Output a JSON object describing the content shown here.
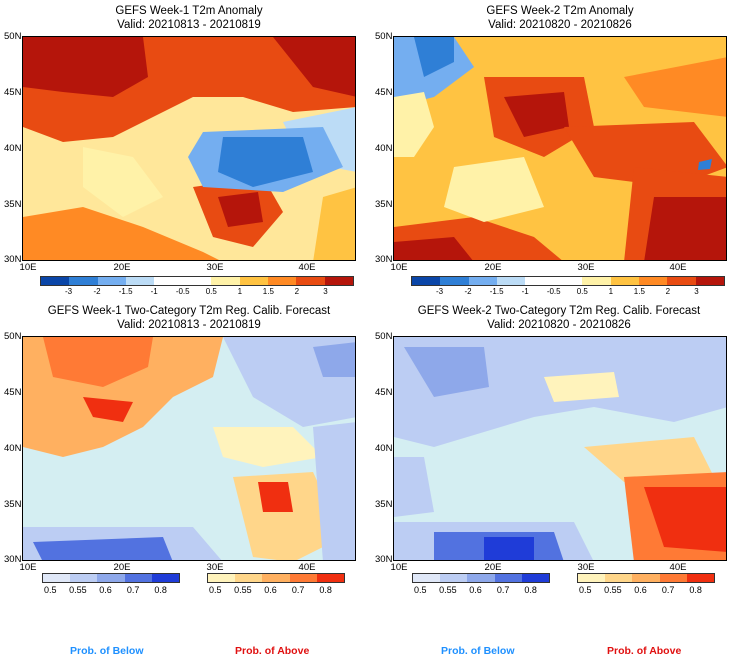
{
  "panels": [
    {
      "title": "GEFS Week-1 T2m Anomaly",
      "valid": "Valid: 20210813 - 20210819",
      "kind": "anomaly"
    },
    {
      "title": "GEFS Week-2 T2m Anomaly",
      "valid": "Valid: 20210820 - 20210826",
      "kind": "anomaly"
    },
    {
      "title": "GEFS Week-1 Two-Category T2m Reg. Calib. Forecast",
      "valid": "Valid: 20210813 - 20210819",
      "kind": "prob"
    },
    {
      "title": "GEFS Week-2 Two-Category T2m Reg. Calib. Forecast",
      "valid": "Valid: 20210820 - 20210826",
      "kind": "prob"
    }
  ],
  "axes": {
    "lat_labels": [
      "50N",
      "45N",
      "40N",
      "35N",
      "30N"
    ],
    "lon_labels": [
      "10E",
      "20E",
      "30E",
      "40E"
    ]
  },
  "anomaly_colorbar": {
    "colors": [
      "#0a46a8",
      "#2f7fd6",
      "#74aef0",
      "#bcdcf6",
      "#ffffff",
      "#ffffff",
      "#fff2a8",
      "#ffc342",
      "#ff8a24",
      "#e84b12",
      "#b5150b"
    ],
    "ticks": [
      "-3",
      "-2",
      "-1.5",
      "-1",
      "-0.5",
      "0.5",
      "1",
      "1.5",
      "2",
      "3"
    ]
  },
  "prob_below": {
    "colors": [
      "#e0e8f8",
      "#bccdf3",
      "#8ea8ea",
      "#5272e0",
      "#1f3cd8"
    ],
    "ticks": [
      "0.5",
      "0.55",
      "0.6",
      "0.7",
      "0.8"
    ]
  },
  "prob_above": {
    "colors": [
      "#fff3bc",
      "#ffd68a",
      "#ffb060",
      "#ff7a35",
      "#f02f10"
    ],
    "ticks": [
      "0.5",
      "0.55",
      "0.6",
      "0.7",
      "0.8"
    ]
  },
  "legend": {
    "below_label": "Prob. of Below",
    "above_label": "Prob. of Above",
    "below_color": "#1e90ff",
    "above_color": "#e01010"
  }
}
